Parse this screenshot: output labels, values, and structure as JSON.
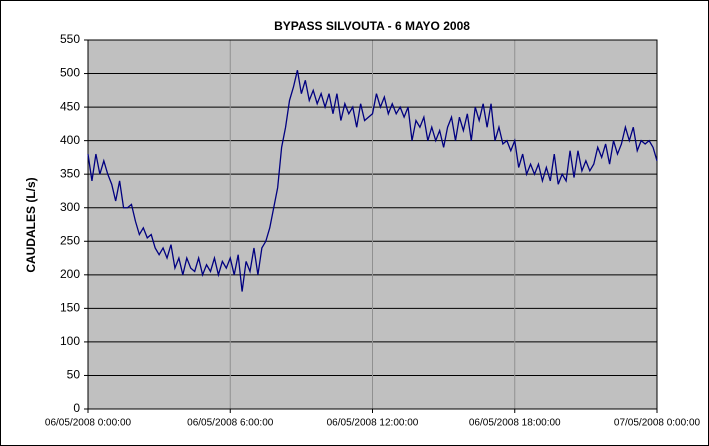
{
  "chart_data": {
    "type": "line",
    "title": "BYPASS SILVOUTA - 6 MAYO 2008",
    "ylabel": "CAUDALES (L/s)",
    "x": [
      0,
      10,
      20,
      30,
      40,
      50,
      60,
      70,
      80,
      90,
      100,
      110,
      120,
      130,
      140,
      150,
      160,
      170,
      180,
      190,
      200,
      210,
      220,
      230,
      240,
      250,
      260,
      270,
      280,
      290,
      300,
      310,
      320,
      330,
      340,
      350,
      360,
      370,
      380,
      390,
      400,
      410,
      420,
      430,
      440,
      450,
      460,
      470,
      480,
      490,
      500,
      510,
      520,
      530,
      540,
      550,
      560,
      570,
      580,
      590,
      600,
      610,
      620,
      630,
      640,
      650,
      660,
      670,
      680,
      690,
      700,
      710,
      720,
      730,
      740,
      750,
      760,
      770,
      780,
      790,
      800,
      810,
      820,
      830,
      840,
      850,
      860,
      870,
      880,
      890,
      900,
      910,
      920,
      930,
      940,
      950,
      960,
      970,
      980,
      990,
      1000,
      1010,
      1020,
      1030,
      1040,
      1050,
      1060,
      1070,
      1080,
      1090,
      1100,
      1110,
      1120,
      1130,
      1140,
      1150,
      1160,
      1170,
      1180,
      1190,
      1200,
      1210,
      1220,
      1230,
      1240,
      1250,
      1260,
      1270,
      1280,
      1290,
      1300,
      1310,
      1320,
      1330,
      1340,
      1350,
      1360,
      1370,
      1380,
      1390,
      1400,
      1410,
      1420,
      1430,
      1440
    ],
    "series": [
      {
        "name": "CAUDALES",
        "color": "#000080",
        "values": [
          380,
          340,
          380,
          350,
          370,
          350,
          335,
          310,
          340,
          300,
          300,
          305,
          280,
          260,
          270,
          255,
          260,
          240,
          230,
          240,
          225,
          245,
          210,
          225,
          200,
          225,
          210,
          205,
          225,
          200,
          215,
          205,
          225,
          200,
          220,
          210,
          225,
          200,
          230,
          175,
          220,
          205,
          240,
          200,
          240,
          250,
          270,
          300,
          330,
          390,
          420,
          460,
          480,
          505,
          470,
          490,
          460,
          475,
          455,
          470,
          450,
          470,
          440,
          470,
          430,
          455,
          440,
          450,
          420,
          455,
          430,
          435,
          440,
          470,
          450,
          465,
          440,
          455,
          440,
          450,
          435,
          450,
          400,
          430,
          420,
          435,
          400,
          420,
          400,
          415,
          390,
          420,
          435,
          400,
          435,
          415,
          440,
          400,
          450,
          430,
          455,
          420,
          455,
          400,
          420,
          395,
          400,
          385,
          400,
          360,
          380,
          350,
          365,
          350,
          365,
          340,
          360,
          340,
          380,
          335,
          350,
          340,
          385,
          345,
          385,
          355,
          370,
          355,
          365,
          390,
          375,
          395,
          365,
          400,
          380,
          395,
          420,
          400,
          420,
          385,
          400,
          395,
          400,
          390,
          370
        ]
      }
    ],
    "xlim": [
      0,
      1440
    ],
    "xticks": [
      {
        "value": 0,
        "label": "06/05/2008  0:00:00"
      },
      {
        "value": 360,
        "label": "06/05/2008  6:00:00"
      },
      {
        "value": 720,
        "label": "06/05/2008  12:00:00"
      },
      {
        "value": 1080,
        "label": "06/05/2008  18:00:00"
      },
      {
        "value": 1440,
        "label": "07/05/2008  0:00:00"
      }
    ],
    "ylim": [
      0,
      550
    ],
    "yticks": [
      0,
      50,
      100,
      150,
      200,
      250,
      300,
      350,
      400,
      450,
      500,
      550
    ],
    "grid": true,
    "legend": false
  }
}
